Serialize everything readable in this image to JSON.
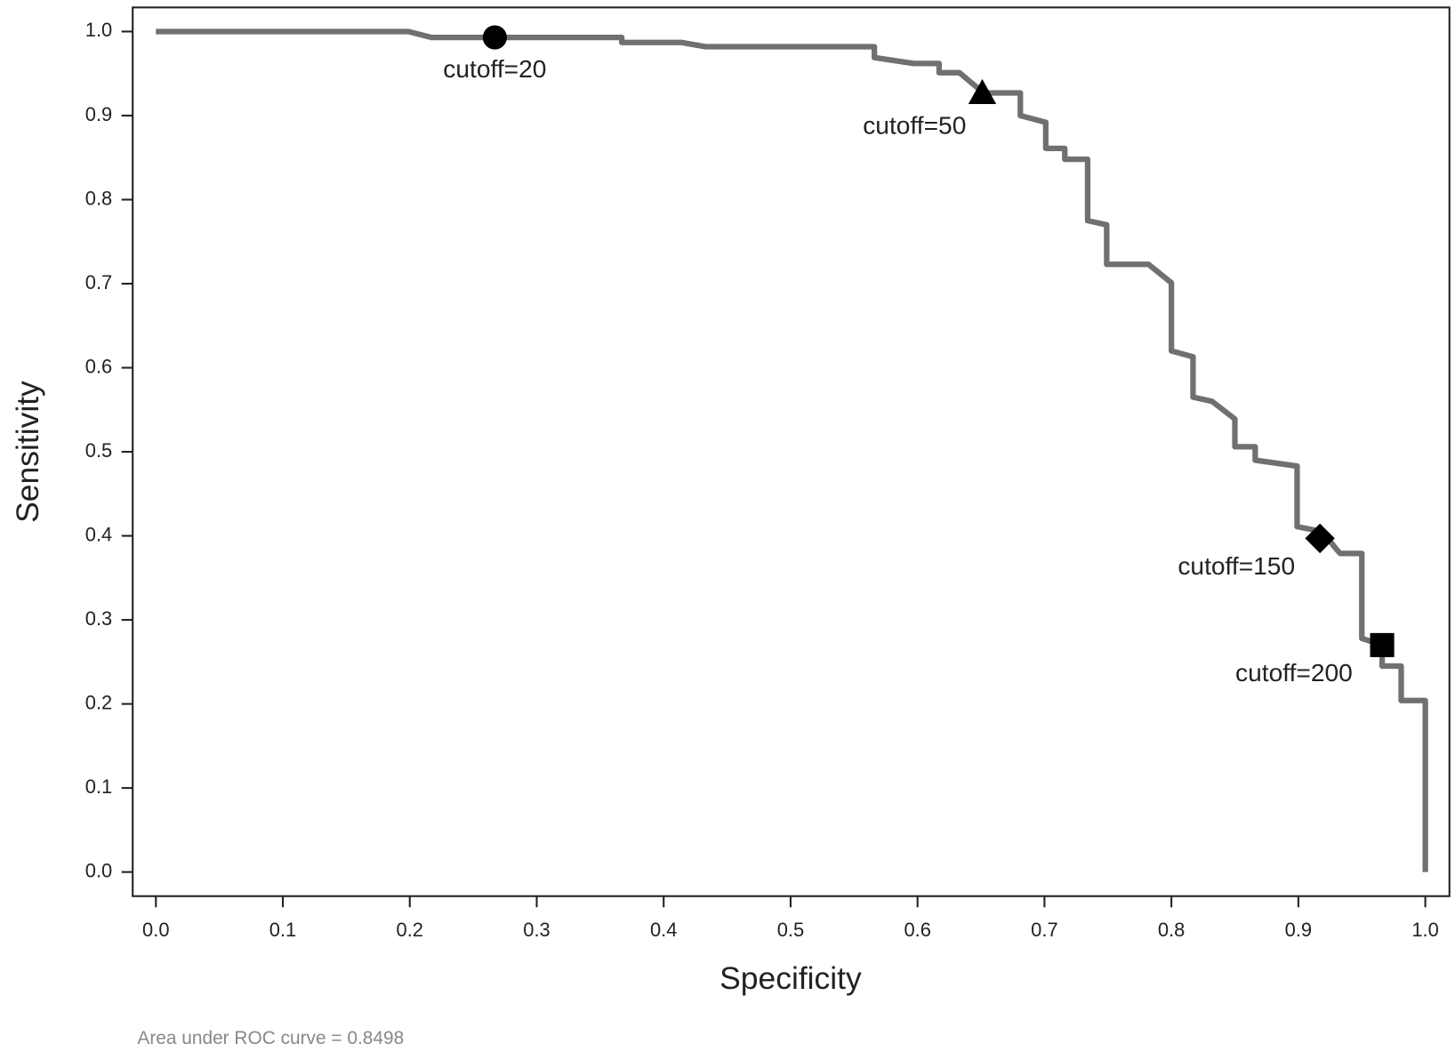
{
  "chart_data": {
    "type": "line",
    "xlabel": "Specificity",
    "ylabel": "Sensitivity",
    "note": "Area under ROC curve = 0.8498",
    "xlim": [
      0,
      1
    ],
    "ylim": [
      0,
      1
    ],
    "xticks": [
      {
        "value": 0,
        "label": "0.0"
      },
      0.1,
      0.2,
      0.3,
      0.4,
      0.5,
      0.6,
      0.7,
      0.8,
      0.9,
      {
        "value": 1,
        "label": "1.0"
      }
    ],
    "yticks": [
      {
        "value": 0,
        "label": "0.0"
      },
      0.1,
      0.2,
      0.3,
      0.4,
      0.5,
      0.6,
      0.7,
      0.8,
      0.9,
      {
        "value": 1,
        "label": "1.0"
      }
    ],
    "series": [
      {
        "color": "#707070",
        "x": [
          0,
          0.199,
          0.217,
          0.367,
          0.367,
          0.414,
          0.433,
          0.566,
          0.566,
          0.597,
          0.617,
          0.617,
          0.633,
          0.652,
          0.681,
          0.681,
          0.701,
          0.701,
          0.716,
          0.716,
          0.734,
          0.734,
          0.749,
          0.749,
          0.782,
          0.8,
          0.8,
          0.817,
          0.817,
          0.832,
          0.85,
          0.85,
          0.866,
          0.866,
          0.899,
          0.899,
          0.919,
          0.93,
          0.933,
          0.95,
          0.95,
          0.966,
          0.966,
          0.981,
          0.981,
          1,
          1
        ],
        "values": [
          1,
          1,
          0.993,
          0.993,
          0.987,
          0.987,
          0.982,
          0.982,
          0.969,
          0.962,
          0.962,
          0.951,
          0.951,
          0.927,
          0.927,
          0.9,
          0.892,
          0.861,
          0.861,
          0.848,
          0.848,
          0.775,
          0.77,
          0.723,
          0.723,
          0.701,
          0.62,
          0.613,
          0.565,
          0.56,
          0.539,
          0.506,
          0.506,
          0.49,
          0.483,
          0.411,
          0.405,
          0.384,
          0.379,
          0.379,
          0.278,
          0.27,
          0.245,
          0.245,
          0.204,
          0.204,
          0
        ]
      }
    ],
    "points": [
      {
        "label": "cutoff=20",
        "x": 0.267,
        "y": 0.993,
        "marker": "circle"
      },
      {
        "label": "cutoff=50",
        "x": 0.651,
        "y": 0.927,
        "marker": "triangle"
      },
      {
        "label": "cutoff=150",
        "x": 0.917,
        "y": 0.397,
        "marker": "diamond"
      },
      {
        "label": "cutoff=200",
        "x": 0.966,
        "y": 0.27,
        "marker": "square"
      }
    ]
  }
}
